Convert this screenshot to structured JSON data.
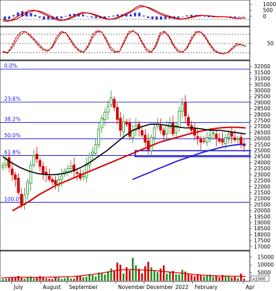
{
  "chart_data": {
    "type": "candlestick",
    "x_axis": {
      "months": [
        "July",
        "August",
        "September",
        "November",
        "December",
        "2022",
        "February",
        "Apr"
      ]
    },
    "panels": {
      "macd": {
        "ticks": [
          1000,
          500,
          0
        ],
        "macd": [
          -380,
          -420,
          -300,
          -100,
          150,
          300,
          480,
          520,
          420,
          250,
          80,
          -100,
          -250,
          -350,
          -300,
          -150,
          20,
          200,
          320,
          300,
          220,
          80,
          -60,
          -180,
          -250,
          -200,
          -80,
          80,
          250,
          420,
          700,
          900,
          850,
          700,
          500,
          300,
          120,
          20,
          -80,
          -180,
          -230,
          -200,
          -120,
          -20,
          60,
          100,
          60,
          20,
          -20,
          -40,
          -20,
          -60,
          -120,
          -160,
          -140,
          -120
        ],
        "signal": [
          -250,
          -330,
          -350,
          -250,
          -50,
          150,
          350,
          460,
          470,
          370,
          200,
          20,
          -150,
          -280,
          -320,
          -230,
          -80,
          100,
          250,
          300,
          260,
          150,
          10,
          -120,
          -220,
          -230,
          -150,
          0,
          170,
          340,
          560,
          760,
          820,
          760,
          600,
          420,
          240,
          110,
          0,
          -100,
          -180,
          -200,
          -160,
          -80,
          10,
          70,
          80,
          50,
          10,
          -20,
          -25,
          -45,
          -90,
          -130,
          -140,
          -130
        ],
        "colors": {
          "macd": "#d40000",
          "signal": "#8b0000",
          "histogram": "#2a33d6"
        }
      },
      "stochastic": {
        "ticks": [
          50
        ],
        "levels": [
          80,
          50,
          20
        ],
        "k": [
          22,
          18,
          40,
          70,
          88,
          90,
          75,
          60,
          42,
          28,
          24,
          40,
          72,
          90,
          85,
          60,
          38,
          24,
          20,
          45,
          80,
          92,
          88,
          60,
          30,
          20,
          24,
          60,
          88,
          92,
          80,
          50,
          25,
          20,
          45,
          85,
          90,
          70,
          40,
          22,
          20,
          38,
          70,
          90,
          88,
          70,
          45,
          25,
          18,
          16,
          20,
          35,
          50,
          46,
          40
        ],
        "d": [
          25,
          20,
          32,
          58,
          80,
          88,
          80,
          65,
          48,
          33,
          27,
          36,
          62,
          84,
          86,
          66,
          44,
          28,
          22,
          38,
          70,
          88,
          88,
          66,
          38,
          24,
          24,
          52,
          82,
          90,
          82,
          56,
          32,
          22,
          38,
          76,
          88,
          74,
          46,
          28,
          22,
          34,
          62,
          85,
          88,
          74,
          50,
          30,
          20,
          17,
          19,
          30,
          44,
          46,
          42
        ]
      },
      "price": {
        "y_ticks": [
          32000,
          31500,
          31000,
          30500,
          30000,
          29500,
          29000,
          28500,
          28000,
          27500,
          27000,
          26500,
          26000,
          25500,
          25000,
          24500,
          24000,
          23500,
          23000,
          22500,
          22000,
          21500,
          21000,
          20500,
          20000,
          19500,
          19000,
          18500,
          18000,
          17500,
          17000
        ],
        "ylim": [
          16700,
          32500
        ],
        "fibonacci": [
          {
            "label": "0.0%",
            "value": 31800
          },
          {
            "label": "23.6%",
            "value": 29050
          },
          {
            "label": "38.2%",
            "value": 27350
          },
          {
            "label": "50.0%",
            "value": 26000
          },
          {
            "label": "61.8%",
            "value": 24600
          },
          {
            "label": "100.0%",
            "value": 20700
          }
        ],
        "support_zone": {
          "from": 24500,
          "to": 25000
        },
        "close": [
          23800,
          24300,
          23600,
          23000,
          22600,
          21500,
          20500,
          21300,
          22400,
          23800,
          24600,
          24300,
          23700,
          23100,
          23000,
          22600,
          22400,
          22200,
          22600,
          22900,
          23300,
          23500,
          23700,
          23300,
          23100,
          22700,
          22900,
          23800,
          24600,
          24900,
          25500,
          26800,
          27700,
          28200,
          28700,
          29400,
          28600,
          27600,
          26700,
          27400,
          27200,
          26200,
          26700,
          27100,
          26800,
          26300,
          25700,
          25100,
          26100,
          26900,
          27200,
          26700,
          26300,
          27100,
          27300,
          26400,
          27100,
          28300,
          28900,
          27900,
          27100,
          26700,
          26300,
          26000,
          25700,
          25800,
          26100,
          26300,
          26500,
          26000,
          25800,
          25700,
          26100,
          26400,
          26200,
          25900,
          26000,
          25600,
          25400
        ],
        "ma_black": [
          24500,
          24000,
          23600,
          23300,
          23100,
          23000,
          23000,
          23100,
          23300,
          23600,
          24000,
          24500,
          25000,
          25600,
          26200,
          26700,
          27000,
          27200,
          27200,
          27100,
          27000,
          26900,
          26900,
          26800,
          26700,
          26700,
          26600,
          26500,
          26400
        ],
        "ma_red": [
          20000,
          20400,
          20800,
          21300,
          21700,
          22100,
          22400,
          22700,
          23000,
          23300,
          23600,
          23900,
          24200,
          24500,
          24800,
          25100,
          25400,
          25700,
          25900,
          26100,
          26300,
          26500,
          26650,
          26800,
          26900,
          26950,
          26950,
          26900
        ],
        "ma_blue": [
          22600,
          22900,
          23200,
          23500,
          23800,
          24100,
          24350,
          24600,
          24850,
          25050,
          25250,
          25400,
          25500,
          25550
        ],
        "colors": {
          "up": "#1f8f1f",
          "down": "#d40000",
          "ma_black": "#000000",
          "ma_red": "#d40000",
          "ma_blue": "#1a1adb",
          "fib": "#1a1adb"
        }
      },
      "volume": {
        "ticks": [
          15000,
          10000,
          5000
        ],
        "unit": "x1000",
        "values": [
          900,
          1200,
          1500,
          1800,
          2400,
          3000,
          1700,
          1200,
          2200,
          2600,
          1500,
          2100,
          2900,
          2300,
          1400,
          1200,
          1000,
          2400,
          1900,
          1100,
          1600,
          2100,
          1400,
          1200,
          2800,
          3300,
          2200,
          2500,
          4200,
          3500,
          2700,
          5200,
          4700,
          3900,
          5800,
          7800,
          6000,
          11500,
          10200,
          4600,
          8600,
          6600,
          14500,
          9800,
          7500,
          4700,
          9200,
          12000,
          8500,
          6300,
          5400,
          7700,
          9800,
          4400,
          5500,
          6200,
          4100,
          3900,
          7000,
          5800,
          4500,
          3600,
          2800,
          4200,
          3300,
          2700,
          3100,
          3800,
          2400,
          3000,
          2200,
          3600,
          2600,
          2800,
          2000,
          2500,
          1500,
          4500,
          1200
        ],
        "ma": [
          1700,
          2000,
          2200,
          2100,
          2000,
          2200,
          2300,
          2400,
          2600,
          3000,
          3700,
          4400,
          5300,
          6400,
          7000,
          7200,
          6800,
          6600,
          6200,
          5600,
          5100,
          4600,
          4000,
          3500,
          3200,
          3000,
          2900,
          2800,
          2700
        ],
        "colors": {
          "up": "#1f8f1f",
          "down": "#d40000",
          "ma": "#d40000"
        }
      }
    }
  }
}
